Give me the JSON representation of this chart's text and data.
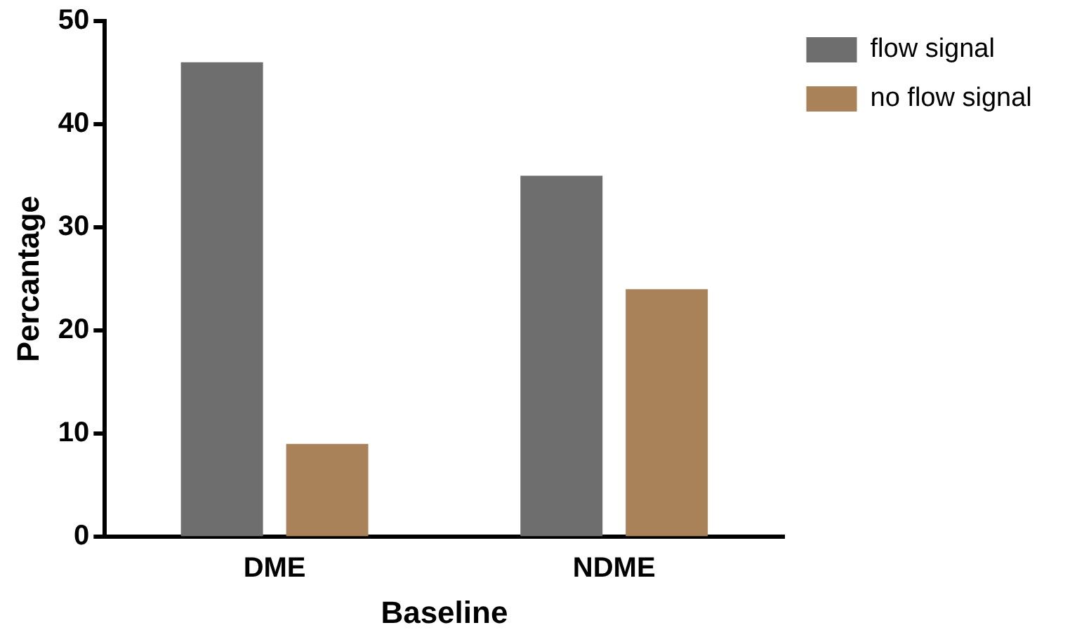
{
  "chart_data": {
    "type": "bar",
    "xlabel": "Baseline",
    "ylabel": "Percantage",
    "categories": [
      "DME",
      "NDME"
    ],
    "series": [
      {
        "name": "flow signal",
        "color": "#6e6e6e",
        "values": [
          46,
          35
        ]
      },
      {
        "name": "no flow signal",
        "color": "#a9825a",
        "values": [
          9,
          24
        ]
      }
    ],
    "ylim": [
      0,
      50
    ],
    "yticks": [
      0,
      10,
      20,
      30,
      40,
      50
    ],
    "grid": false,
    "legend": "top right"
  }
}
